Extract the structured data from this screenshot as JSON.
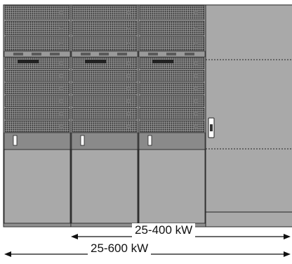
{
  "dimensions": {
    "short_span_label": "25-400 kW",
    "long_span_label": "25-600 kW"
  },
  "modules": {
    "ups_cabinet_count": 3,
    "upper_module_rows": 3,
    "lower_module_rows": 6
  },
  "colors": {
    "cabinet_fill": "#a9a9a9",
    "cabinet_outline": "#222222",
    "perforation": "#2a2a2a",
    "dim_line": "#111111"
  }
}
